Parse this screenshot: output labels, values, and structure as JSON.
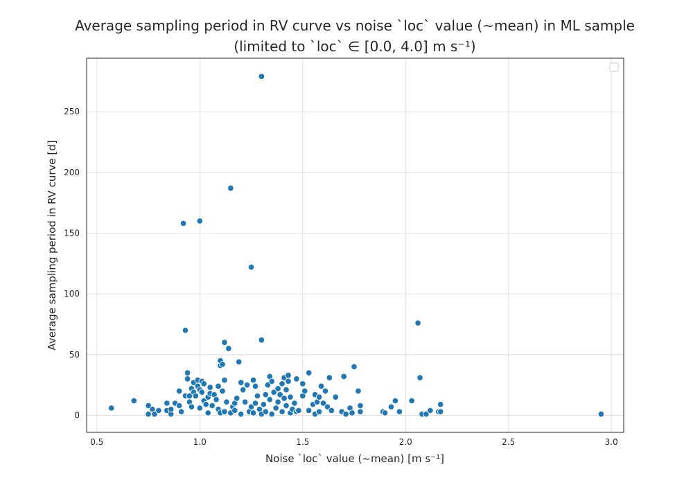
{
  "chart_data": {
    "type": "scatter",
    "title_line1": "Average sampling period in RV curve vs noise `loc` value (~mean) in ML sample",
    "title_line2": "(limited to `loc` ∈ [0.0, 4.0] m s⁻¹)",
    "xlabel": "Noise `loc` value (~mean) [m s⁻¹]",
    "ylabel": "Average sampling period in RV curve [d]",
    "xlim": [
      0.45,
      3.06
    ],
    "ylim": [
      -14,
      294
    ],
    "x_ticks": [
      0.5,
      1.0,
      1.5,
      2.0,
      2.5,
      3.0
    ],
    "x_tick_labels": [
      "0.5",
      "1.0",
      "1.5",
      "2.0",
      "2.5",
      "3.0"
    ],
    "y_ticks": [
      0,
      50,
      100,
      150,
      200,
      250
    ],
    "y_tick_labels": [
      "0",
      "50",
      "100",
      "150",
      "200",
      "250"
    ],
    "grid": true,
    "legend": "top-right (empty)",
    "marker_color": "#1f77b4",
    "points": [
      [
        0.57,
        6
      ],
      [
        0.68,
        12
      ],
      [
        0.75,
        8
      ],
      [
        0.75,
        1
      ],
      [
        0.77,
        5
      ],
      [
        0.78,
        1
      ],
      [
        0.8,
        4
      ],
      [
        0.84,
        10
      ],
      [
        0.84,
        4
      ],
      [
        0.86,
        1
      ],
      [
        0.86,
        5
      ],
      [
        0.88,
        10
      ],
      [
        0.9,
        8
      ],
      [
        0.9,
        20
      ],
      [
        0.91,
        3
      ],
      [
        0.92,
        158
      ],
      [
        0.93,
        70
      ],
      [
        0.93,
        16
      ],
      [
        0.94,
        30
      ],
      [
        0.94,
        35
      ],
      [
        0.95,
        11
      ],
      [
        0.95,
        16
      ],
      [
        0.96,
        22
      ],
      [
        0.96,
        7
      ],
      [
        0.97,
        19
      ],
      [
        0.97,
        27
      ],
      [
        0.98,
        16
      ],
      [
        0.99,
        29
      ],
      [
        0.99,
        24
      ],
      [
        1.0,
        160
      ],
      [
        1.0,
        21
      ],
      [
        1.0,
        6
      ],
      [
        1.01,
        28
      ],
      [
        1.01,
        19
      ],
      [
        1.02,
        26
      ],
      [
        1.02,
        12
      ],
      [
        1.03,
        9
      ],
      [
        1.04,
        2
      ],
      [
        1.04,
        15
      ],
      [
        1.05,
        18
      ],
      [
        1.05,
        23
      ],
      [
        1.06,
        8
      ],
      [
        1.07,
        17
      ],
      [
        1.08,
        13
      ],
      [
        1.09,
        24
      ],
      [
        1.09,
        5
      ],
      [
        1.1,
        41
      ],
      [
        1.1,
        2
      ],
      [
        1.1,
        45
      ],
      [
        1.11,
        42
      ],
      [
        1.11,
        20
      ],
      [
        1.12,
        60
      ],
      [
        1.12,
        3
      ],
      [
        1.12,
        29
      ],
      [
        1.13,
        11
      ],
      [
        1.14,
        55
      ],
      [
        1.15,
        187
      ],
      [
        1.15,
        2
      ],
      [
        1.16,
        7
      ],
      [
        1.17,
        4
      ],
      [
        1.17,
        10
      ],
      [
        1.18,
        14
      ],
      [
        1.19,
        44
      ],
      [
        1.2,
        27
      ],
      [
        1.2,
        1
      ],
      [
        1.21,
        21
      ],
      [
        1.22,
        11
      ],
      [
        1.23,
        25
      ],
      [
        1.24,
        3
      ],
      [
        1.25,
        122
      ],
      [
        1.25,
        7
      ],
      [
        1.26,
        29
      ],
      [
        1.26,
        2
      ],
      [
        1.27,
        24
      ],
      [
        1.27,
        10
      ],
      [
        1.28,
        16
      ],
      [
        1.29,
        5
      ],
      [
        1.3,
        279
      ],
      [
        1.3,
        62
      ],
      [
        1.3,
        1
      ],
      [
        1.31,
        9
      ],
      [
        1.32,
        17
      ],
      [
        1.32,
        3
      ],
      [
        1.33,
        25
      ],
      [
        1.34,
        32
      ],
      [
        1.34,
        13
      ],
      [
        1.35,
        28
      ],
      [
        1.35,
        1
      ],
      [
        1.36,
        19
      ],
      [
        1.37,
        6
      ],
      [
        1.38,
        22
      ],
      [
        1.38,
        11
      ],
      [
        1.39,
        17
      ],
      [
        1.4,
        3
      ],
      [
        1.4,
        26
      ],
      [
        1.41,
        14
      ],
      [
        1.41,
        31
      ],
      [
        1.42,
        8
      ],
      [
        1.42,
        21
      ],
      [
        1.43,
        33
      ],
      [
        1.43,
        28
      ],
      [
        1.44,
        15
      ],
      [
        1.44,
        2
      ],
      [
        1.45,
        5
      ],
      [
        1.46,
        10
      ],
      [
        1.47,
        30
      ],
      [
        1.47,
        3
      ],
      [
        1.48,
        4
      ],
      [
        1.5,
        26
      ],
      [
        1.5,
        16
      ],
      [
        1.51,
        20
      ],
      [
        1.53,
        35
      ],
      [
        1.53,
        4
      ],
      [
        1.55,
        9
      ],
      [
        1.56,
        1
      ],
      [
        1.56,
        17
      ],
      [
        1.57,
        11
      ],
      [
        1.58,
        3
      ],
      [
        1.58,
        15
      ],
      [
        1.59,
        24
      ],
      [
        1.6,
        10
      ],
      [
        1.61,
        20
      ],
      [
        1.62,
        7
      ],
      [
        1.63,
        31
      ],
      [
        1.64,
        4
      ],
      [
        1.66,
        15
      ],
      [
        1.69,
        3
      ],
      [
        1.7,
        32
      ],
      [
        1.71,
        1
      ],
      [
        1.73,
        6
      ],
      [
        1.74,
        2
      ],
      [
        1.75,
        40
      ],
      [
        1.77,
        20
      ],
      [
        1.78,
        8
      ],
      [
        1.78,
        3
      ],
      [
        1.89,
        3
      ],
      [
        1.9,
        2
      ],
      [
        1.93,
        7
      ],
      [
        1.95,
        12
      ],
      [
        1.97,
        3
      ],
      [
        2.03,
        12
      ],
      [
        2.06,
        76
      ],
      [
        2.07,
        31
      ],
      [
        2.08,
        1
      ],
      [
        2.1,
        1
      ],
      [
        2.12,
        4
      ],
      [
        2.16,
        3
      ],
      [
        2.17,
        9
      ],
      [
        2.17,
        3
      ],
      [
        2.95,
        1
      ]
    ]
  }
}
